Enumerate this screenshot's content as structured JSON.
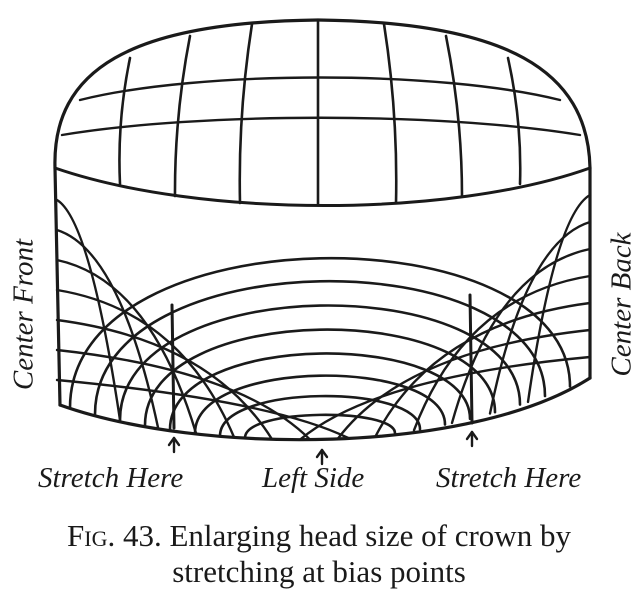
{
  "labels": {
    "center_front": "Center Front",
    "center_back": "Center Back",
    "stretch_left": "Stretch Here",
    "left_side": "Left Side",
    "stretch_right": "Stretch Here"
  },
  "caption": {
    "figure": "Fig. 43.",
    "line1": "Enlarging head size of crown by",
    "line2": "stretching at bias points"
  },
  "colors": {
    "ink": "#1a1a1a",
    "background": "#ffffff"
  }
}
